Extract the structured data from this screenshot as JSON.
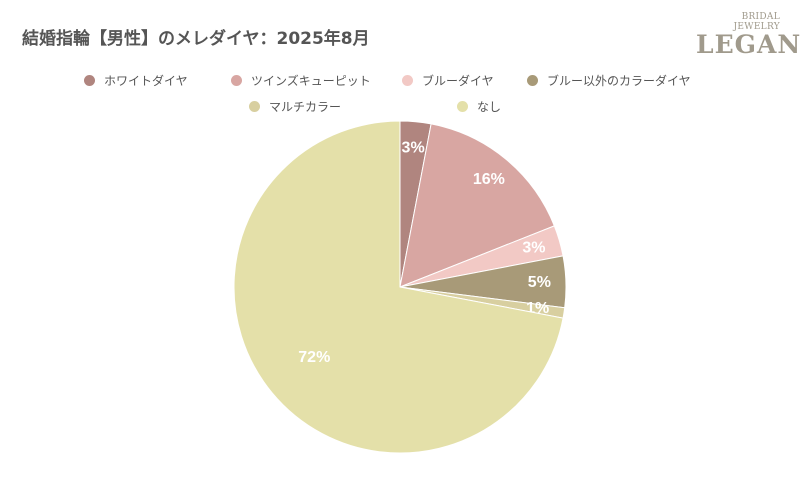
{
  "title": "結婚指輪【男性】のメレダイヤ：2025年8月",
  "logo": {
    "sub": "BRIDAL JEWELRY",
    "main": "LEGAN"
  },
  "chart_data": {
    "type": "pie",
    "title": "結婚指輪【男性】のメレダイヤ：2025年8月",
    "legend_position": "top",
    "start": "top, clockwise",
    "slices": [
      {
        "label": "ホワイトダイヤ",
        "value": 3,
        "text": "3%",
        "color": "#b0857f"
      },
      {
        "label": "ツインズキューピット",
        "value": 16,
        "text": "16%",
        "color": "#d8a6a2"
      },
      {
        "label": "ブルーダイヤ",
        "value": 3,
        "text": "3%",
        "color": "#f2c9c5"
      },
      {
        "label": "ブルー以外のカラーダイヤ",
        "value": 5,
        "text": "5%",
        "color": "#a89a78"
      },
      {
        "label": "マルチカラー",
        "value": 1,
        "text": "1%",
        "color": "#d8cfa0"
      },
      {
        "label": "なし",
        "value": 72,
        "text": "72%",
        "color": "#e4e0a9"
      }
    ]
  }
}
